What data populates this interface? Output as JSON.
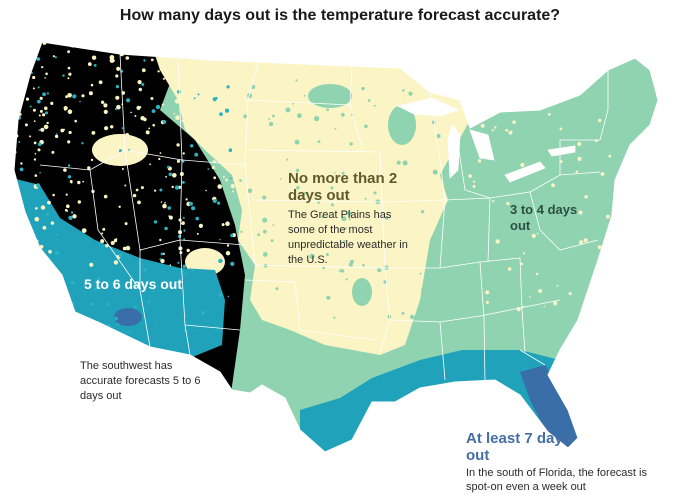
{
  "title": "How many days out is the temperature forecast accurate?",
  "regions": {
    "plains": {
      "heading": "No more than 2 days out",
      "note": "The Great Plains has some of the most unpredictable weather in the U.S.",
      "color": "#fbf4c4"
    },
    "east": {
      "heading": "3 to 4 days out",
      "color": "#8fd3b0"
    },
    "southwest": {
      "heading": "5 to 6 days out",
      "note": "The southwest has accurate forecasts 5 to 6 days out",
      "color": "#1fa2ba"
    },
    "florida": {
      "heading": "At least 7 days out",
      "note": "In the south of Florida, the forecast is spot-on even a week out",
      "color": "#3a6ea8"
    }
  },
  "colors": {
    "border": "#ffffff",
    "teal_speckle": "#2bb3c0"
  }
}
